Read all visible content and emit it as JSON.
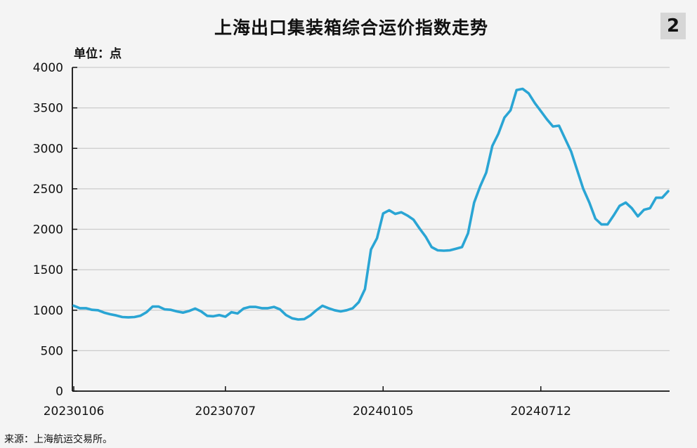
{
  "badge": "2",
  "unit_label": "单位：点",
  "source": "来源：上海航运交易所。",
  "chart_data": {
    "type": "line",
    "title": "上海出口集装箱综合运价指数走势",
    "xlabel": "",
    "ylabel": "",
    "ylim": [
      0,
      4000
    ],
    "yticks": [
      0,
      500,
      1000,
      1500,
      2000,
      2500,
      3000,
      3500,
      4000
    ],
    "xtick_labels": [
      "20230106",
      "20230707",
      "20240105",
      "20240712"
    ],
    "xtick_index": [
      0,
      25,
      51,
      77
    ],
    "grid": "horizontal",
    "line_color": "#2aa5d4",
    "series": [
      {
        "values": [
          1055,
          1025,
          1025,
          1005,
          1000,
          970,
          950,
          935,
          915,
          912,
          915,
          932,
          975,
          1045,
          1045,
          1010,
          1005,
          985,
          970,
          990,
          1020,
          985,
          930,
          925,
          940,
          920,
          975,
          960,
          1020,
          1040,
          1040,
          1025,
          1025,
          1040,
          1010,
          940,
          900,
          885,
          890,
          935,
          1000,
          1055,
          1025,
          1000,
          985,
          1000,
          1025,
          1100,
          1260,
          1750,
          1890,
          2195,
          2235,
          2190,
          2210,
          2170,
          2120,
          2010,
          1910,
          1780,
          1740,
          1735,
          1740,
          1760,
          1780,
          1950,
          2330,
          2530,
          2700,
          3030,
          3180,
          3380,
          3470,
          3720,
          3735,
          3680,
          3560,
          3460,
          3360,
          3270,
          3280,
          3120,
          2960,
          2730,
          2500,
          2330,
          2130,
          2060,
          2060,
          2170,
          2290,
          2330,
          2260,
          2160,
          2240,
          2260,
          2390,
          2390,
          2470
        ]
      }
    ]
  }
}
